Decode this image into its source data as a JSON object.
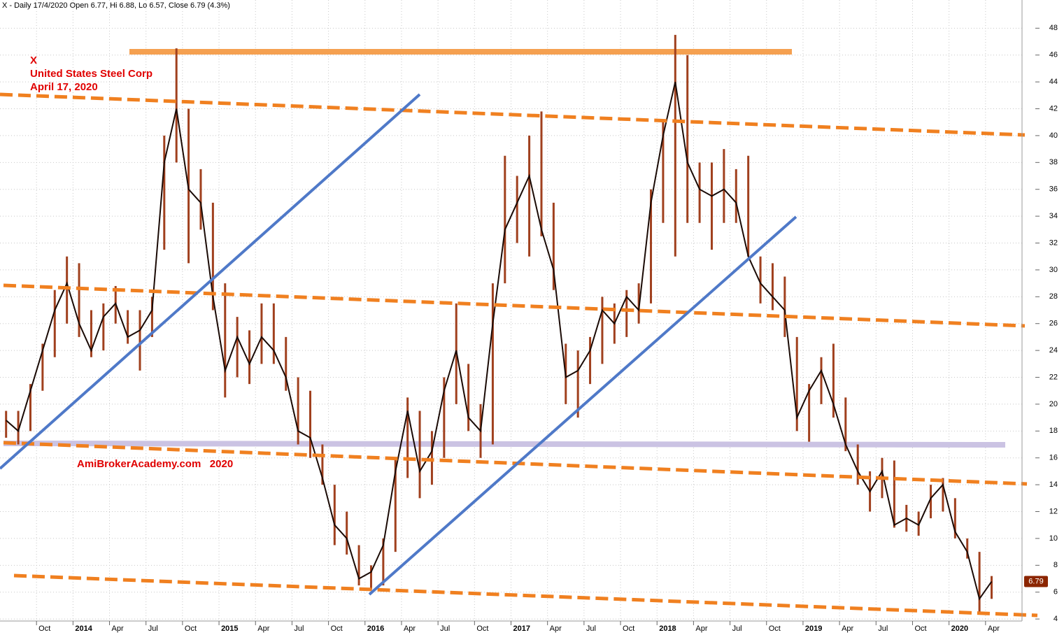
{
  "chart_data": {
    "type": "hlc",
    "title": "X - Daily 17/4/2020 Open 6.77, Hi 6.88, Lo 6.57, Close 6.79 (4.3%)",
    "annotations": [
      "X",
      "United States Steel Corp",
      "April 17, 2020",
      "AmiBrokerAcademy.com   2020"
    ],
    "x": [
      "2013-07",
      "2013-08",
      "2013-09",
      "2013-10",
      "2013-11",
      "2013-12",
      "2014-01",
      "2014-02",
      "2014-03",
      "2014-04",
      "2014-05",
      "2014-06",
      "2014-07",
      "2014-08",
      "2014-09",
      "2014-10",
      "2014-11",
      "2014-12",
      "2015-01",
      "2015-02",
      "2015-03",
      "2015-04",
      "2015-05",
      "2015-06",
      "2015-07",
      "2015-08",
      "2015-09",
      "2015-10",
      "2015-11",
      "2015-12",
      "2016-01",
      "2016-02",
      "2016-03",
      "2016-04",
      "2016-05",
      "2016-06",
      "2016-07",
      "2016-08",
      "2016-09",
      "2016-10",
      "2016-11",
      "2016-12",
      "2017-01",
      "2017-02",
      "2017-03",
      "2017-04",
      "2017-05",
      "2017-06",
      "2017-07",
      "2017-08",
      "2017-09",
      "2017-10",
      "2017-11",
      "2017-12",
      "2018-01",
      "2018-02",
      "2018-03",
      "2018-04",
      "2018-05",
      "2018-06",
      "2018-07",
      "2018-08",
      "2018-09",
      "2018-10",
      "2018-11",
      "2018-12",
      "2019-01",
      "2019-02",
      "2019-03",
      "2019-04",
      "2019-05",
      "2019-06",
      "2019-07",
      "2019-08",
      "2019-09",
      "2019-10",
      "2019-11",
      "2019-12",
      "2020-01",
      "2020-02",
      "2020-03",
      "2020-04"
    ],
    "high": [
      19.5,
      19.5,
      21.5,
      24.5,
      28.5,
      31,
      30.5,
      27,
      27.5,
      28.8,
      27,
      27,
      28,
      40,
      46.5,
      42,
      37.5,
      35,
      29,
      26.5,
      25.5,
      27.5,
      27.5,
      25,
      22,
      21,
      17,
      14,
      12,
      9.5,
      8,
      10,
      16,
      20.5,
      19.5,
      18,
      22,
      27.5,
      23,
      20,
      29,
      38.5,
      37,
      40,
      41.8,
      35,
      24.5,
      24,
      25,
      28,
      27.5,
      28.5,
      29,
      36,
      41,
      47.5,
      46,
      38,
      38,
      39,
      37.5,
      38.5,
      31,
      30.5,
      29.5,
      25,
      21.5,
      23.5,
      24.5,
      20.5,
      17,
      15,
      16,
      15.8,
      12.5,
      12,
      14,
      14.5,
      13,
      10,
      9,
      7.2
    ],
    "low": [
      17.5,
      17,
      18,
      21,
      23.5,
      26,
      25,
      23.5,
      24,
      26,
      24.5,
      22.5,
      25,
      31.5,
      38,
      30.5,
      33,
      27,
      20.5,
      22,
      21.5,
      23,
      23,
      21,
      17,
      16,
      14,
      9.5,
      8.8,
      6.5,
      6.2,
      6.5,
      9,
      14.5,
      13,
      14,
      16,
      20,
      18,
      16,
      17,
      29,
      32,
      31,
      32.5,
      28.5,
      20,
      19,
      21.5,
      23,
      24.5,
      25,
      26,
      27.5,
      33.5,
      31,
      33.5,
      33.5,
      31.5,
      33.5,
      33.5,
      31,
      27.5,
      27,
      25,
      18,
      17.2,
      20,
      19,
      16.5,
      14,
      12,
      13,
      10.8,
      10.5,
      10.2,
      11.5,
      12,
      10,
      8.5,
      4.5,
      5.5
    ],
    "close": [
      18.8,
      18,
      21,
      24,
      27,
      29,
      26,
      24,
      26.5,
      27.5,
      25,
      25.5,
      27,
      38,
      42,
      36,
      35,
      28,
      22.5,
      25,
      23,
      25,
      24,
      22,
      18,
      17.5,
      14.5,
      11,
      10,
      7,
      7.5,
      9.5,
      15,
      19.5,
      15,
      16.5,
      21,
      24,
      19,
      18,
      26,
      33,
      35,
      37,
      33,
      30,
      22,
      22.5,
      24,
      27,
      26,
      28,
      27,
      35,
      40,
      44,
      38,
      36,
      35.5,
      36,
      35,
      31,
      29,
      28,
      27,
      19,
      21,
      22.5,
      20,
      17,
      15,
      13.5,
      15,
      11,
      11.5,
      11,
      13,
      14,
      10.5,
      9,
      5.5,
      6.79
    ],
    "color": "#1a0a05",
    "range_color": "#a0401e",
    "xlim": [
      "2013-07",
      "2020-07"
    ],
    "xticks": [
      {
        "value": "2013-10",
        "label": "Oct"
      },
      {
        "value": "2014-01",
        "label": "2014"
      },
      {
        "value": "2014-04",
        "label": "Apr"
      },
      {
        "value": "2014-07",
        "label": "Jul"
      },
      {
        "value": "2014-10",
        "label": "Oct"
      },
      {
        "value": "2015-01",
        "label": "2015"
      },
      {
        "value": "2015-04",
        "label": "Apr"
      },
      {
        "value": "2015-07",
        "label": "Jul"
      },
      {
        "value": "2015-10",
        "label": "Oct"
      },
      {
        "value": "2016-01",
        "label": "2016"
      },
      {
        "value": "2016-04",
        "label": "Apr"
      },
      {
        "value": "2016-07",
        "label": "Jul"
      },
      {
        "value": "2016-10",
        "label": "Oct"
      },
      {
        "value": "2017-01",
        "label": "2017"
      },
      {
        "value": "2017-04",
        "label": "Apr"
      },
      {
        "value": "2017-07",
        "label": "Jul"
      },
      {
        "value": "2017-10",
        "label": "Oct"
      },
      {
        "value": "2018-01",
        "label": "2018"
      },
      {
        "value": "2018-04",
        "label": "Apr"
      },
      {
        "value": "2018-07",
        "label": "Jul"
      },
      {
        "value": "2018-10",
        "label": "Oct"
      },
      {
        "value": "2019-01",
        "label": "2019"
      },
      {
        "value": "2019-04",
        "label": "Apr"
      },
      {
        "value": "2019-07",
        "label": "Jul"
      },
      {
        "value": "2019-10",
        "label": "Oct"
      },
      {
        "value": "2020-01",
        "label": "2020"
      },
      {
        "value": "2020-04",
        "label": "Apr"
      }
    ],
    "ylim": [
      3.85,
      50.1
    ],
    "yticks": [
      4,
      6,
      8,
      10,
      12,
      14,
      16,
      18,
      20,
      22,
      24,
      26,
      28,
      30,
      32,
      34,
      36,
      38,
      40,
      42,
      44,
      46,
      48
    ],
    "grid": true
  }
}
